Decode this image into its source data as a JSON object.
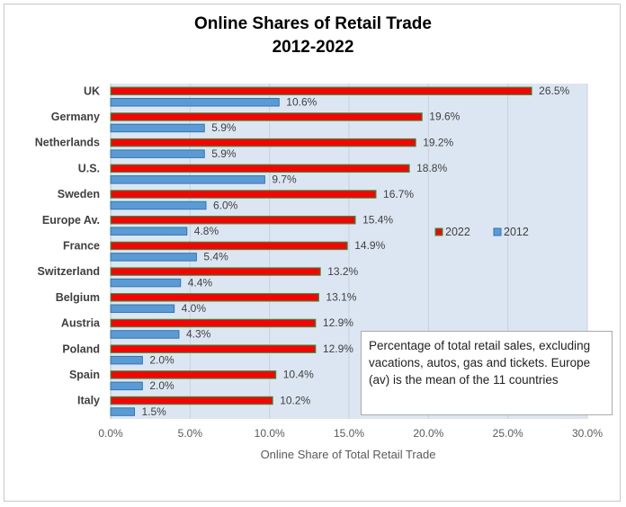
{
  "chart_data": {
    "type": "bar",
    "orientation": "horizontal",
    "title": "Online Shares of Retail Trade",
    "subtitle": "2012-2022",
    "xlabel": "Online Share of Total Retail Trade",
    "ylabel": "",
    "xlim": [
      0,
      30
    ],
    "x_ticks": [
      "0.0%",
      "5.0%",
      "10.0%",
      "15.0%",
      "20.0%",
      "25.0%",
      "30.0%"
    ],
    "grid": true,
    "legend_position": "right-middle",
    "categories": [
      "UK",
      "Germany",
      "Netherlands",
      "U.S.",
      "Sweden",
      "Europe Av.",
      "France",
      "Switzerland",
      "Belgium",
      "Austria",
      "Poland",
      "Spain",
      "Italy"
    ],
    "series": [
      {
        "name": "2022",
        "color": "#ff0000",
        "values": [
          26.5,
          19.6,
          19.2,
          18.8,
          16.7,
          15.4,
          14.9,
          13.2,
          13.1,
          12.9,
          12.9,
          10.4,
          10.2
        ],
        "labels": [
          "26.5%",
          "19.6%",
          "19.2%",
          "18.8%",
          "16.7%",
          "15.4%",
          "14.9%",
          "13.2%",
          "13.1%",
          "12.9%",
          "12.9%",
          "10.4%",
          "10.2%"
        ]
      },
      {
        "name": "2012",
        "color": "#5b9bd5",
        "values": [
          10.6,
          5.9,
          5.9,
          9.7,
          6.0,
          4.8,
          5.4,
          4.4,
          4.0,
          4.3,
          2.0,
          2.0,
          1.5
        ],
        "labels": [
          "10.6%",
          "5.9%",
          "5.9%",
          "9.7%",
          "6.0%",
          "4.8%",
          "5.4%",
          "4.4%",
          "4.0%",
          "4.3%",
          "2.0%",
          "2.0%",
          "1.5%"
        ]
      }
    ],
    "annotation": "Percentage of total retail sales, excluding vacations, autos, gas and tickets. Europe (av) is the mean of the 11 countries"
  },
  "colors": {
    "plot_bg": "#dce6f2",
    "gridline": "#c9d3de",
    "series_2022_border": "#00b050",
    "series_2012_border": "#2e75b6"
  }
}
